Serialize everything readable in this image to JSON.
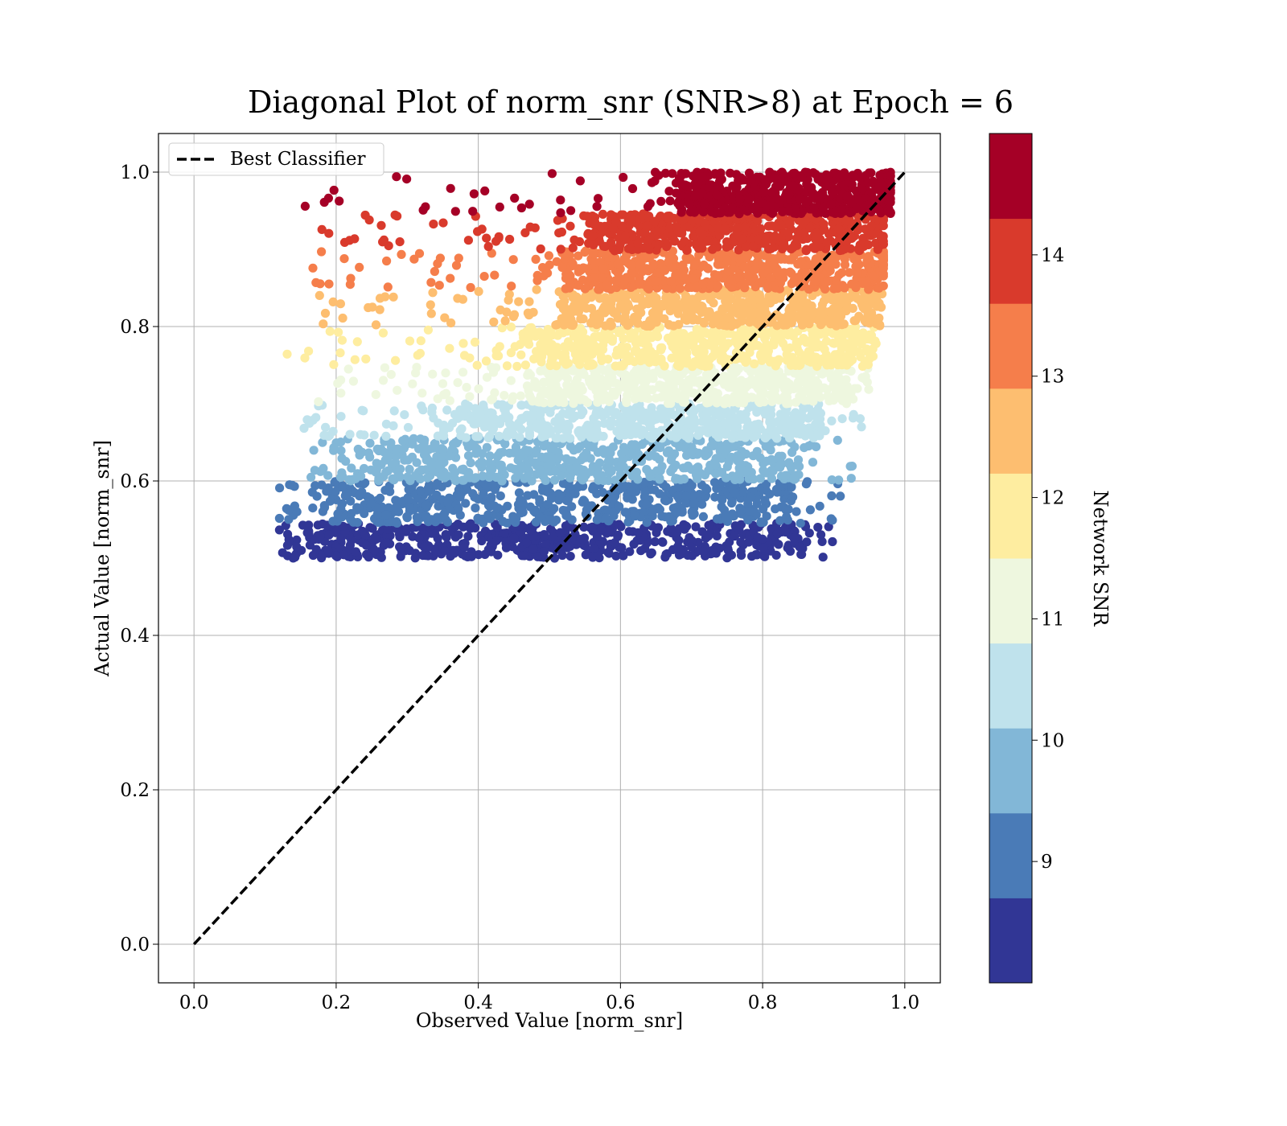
{
  "chart_data": {
    "type": "scatter",
    "title": "Diagonal Plot of norm_snr (SNR>8) at Epoch = 6",
    "xlabel": "Observed Value [norm_snr]",
    "ylabel": "Actual Value [norm_snr]",
    "xlim": [
      -0.05,
      1.05
    ],
    "ylim": [
      -0.05,
      1.05
    ],
    "xticks": [
      "0.0",
      "0.2",
      "0.4",
      "0.6",
      "0.8",
      "1.0"
    ],
    "yticks": [
      "0.0",
      "0.2",
      "0.4",
      "0.6",
      "0.8",
      "1.0"
    ],
    "grid": true,
    "legend": {
      "placement": "upper-left",
      "entries": [
        "Best Classifier"
      ]
    },
    "reference_line": {
      "name": "Best Classifier",
      "x": [
        0.0,
        1.0
      ],
      "y": [
        0.0,
        1.0
      ],
      "style": "dashed",
      "color": "#000000"
    },
    "colorbar": {
      "label": "Network SNR",
      "range": [
        8,
        15
      ],
      "ticks": [
        "9",
        "10",
        "11",
        "12",
        "13",
        "14"
      ],
      "bins": [
        {
          "from": 8.0,
          "to": 8.7,
          "color": "#313695"
        },
        {
          "from": 8.7,
          "to": 9.4,
          "color": "#4a7bb7"
        },
        {
          "from": 9.4,
          "to": 10.1,
          "color": "#82b7d7"
        },
        {
          "from": 10.1,
          "to": 10.8,
          "color": "#bfe2ec"
        },
        {
          "from": 10.8,
          "to": 11.5,
          "color": "#eef7df"
        },
        {
          "from": 11.5,
          "to": 12.2,
          "color": "#feeda0"
        },
        {
          "from": 12.2,
          "to": 12.9,
          "color": "#fdbe70"
        },
        {
          "from": 12.9,
          "to": 13.6,
          "color": "#f57e4b"
        },
        {
          "from": 13.6,
          "to": 14.3,
          "color": "#d93a2c"
        },
        {
          "from": 14.3,
          "to": 15.0,
          "color": "#a50026"
        }
      ]
    },
    "scatter_bands": [
      {
        "snr_bin": 0,
        "y_range": [
          0.5,
          0.545
        ],
        "x_core": [
          0.19,
          0.86
        ],
        "x_tail": [
          0.12,
          0.9
        ]
      },
      {
        "snr_bin": 1,
        "y_range": [
          0.545,
          0.6
        ],
        "x_core": [
          0.21,
          0.84
        ],
        "x_tail": [
          0.12,
          0.92
        ]
      },
      {
        "snr_bin": 2,
        "y_range": [
          0.6,
          0.655
        ],
        "x_core": [
          0.26,
          0.85
        ],
        "x_tail": [
          0.16,
          0.93
        ]
      },
      {
        "snr_bin": 3,
        "y_range": [
          0.655,
          0.7
        ],
        "x_core": [
          0.37,
          0.88
        ],
        "x_tail": [
          0.15,
          0.94
        ]
      },
      {
        "snr_bin": 4,
        "y_range": [
          0.7,
          0.748
        ],
        "x_core": [
          0.47,
          0.92
        ],
        "x_tail": [
          0.17,
          0.95
        ]
      },
      {
        "snr_bin": 5,
        "y_range": [
          0.748,
          0.8
        ],
        "x_core": [
          0.47,
          0.95
        ],
        "x_tail": [
          0.13,
          0.96
        ]
      },
      {
        "snr_bin": 6,
        "y_range": [
          0.8,
          0.848
        ],
        "x_core": [
          0.52,
          0.96
        ],
        "x_tail": [
          0.16,
          0.97
        ]
      },
      {
        "snr_bin": 7,
        "y_range": [
          0.848,
          0.898
        ],
        "x_core": [
          0.52,
          0.97
        ],
        "x_tail": [
          0.16,
          0.97
        ]
      },
      {
        "snr_bin": 8,
        "y_range": [
          0.898,
          0.946
        ],
        "x_core": [
          0.56,
          0.97
        ],
        "x_tail": [
          0.17,
          0.97
        ]
      },
      {
        "snr_bin": 9,
        "y_range": [
          0.946,
          1.0
        ],
        "x_core": [
          0.68,
          0.98
        ],
        "x_tail": [
          0.15,
          0.98
        ]
      }
    ]
  }
}
